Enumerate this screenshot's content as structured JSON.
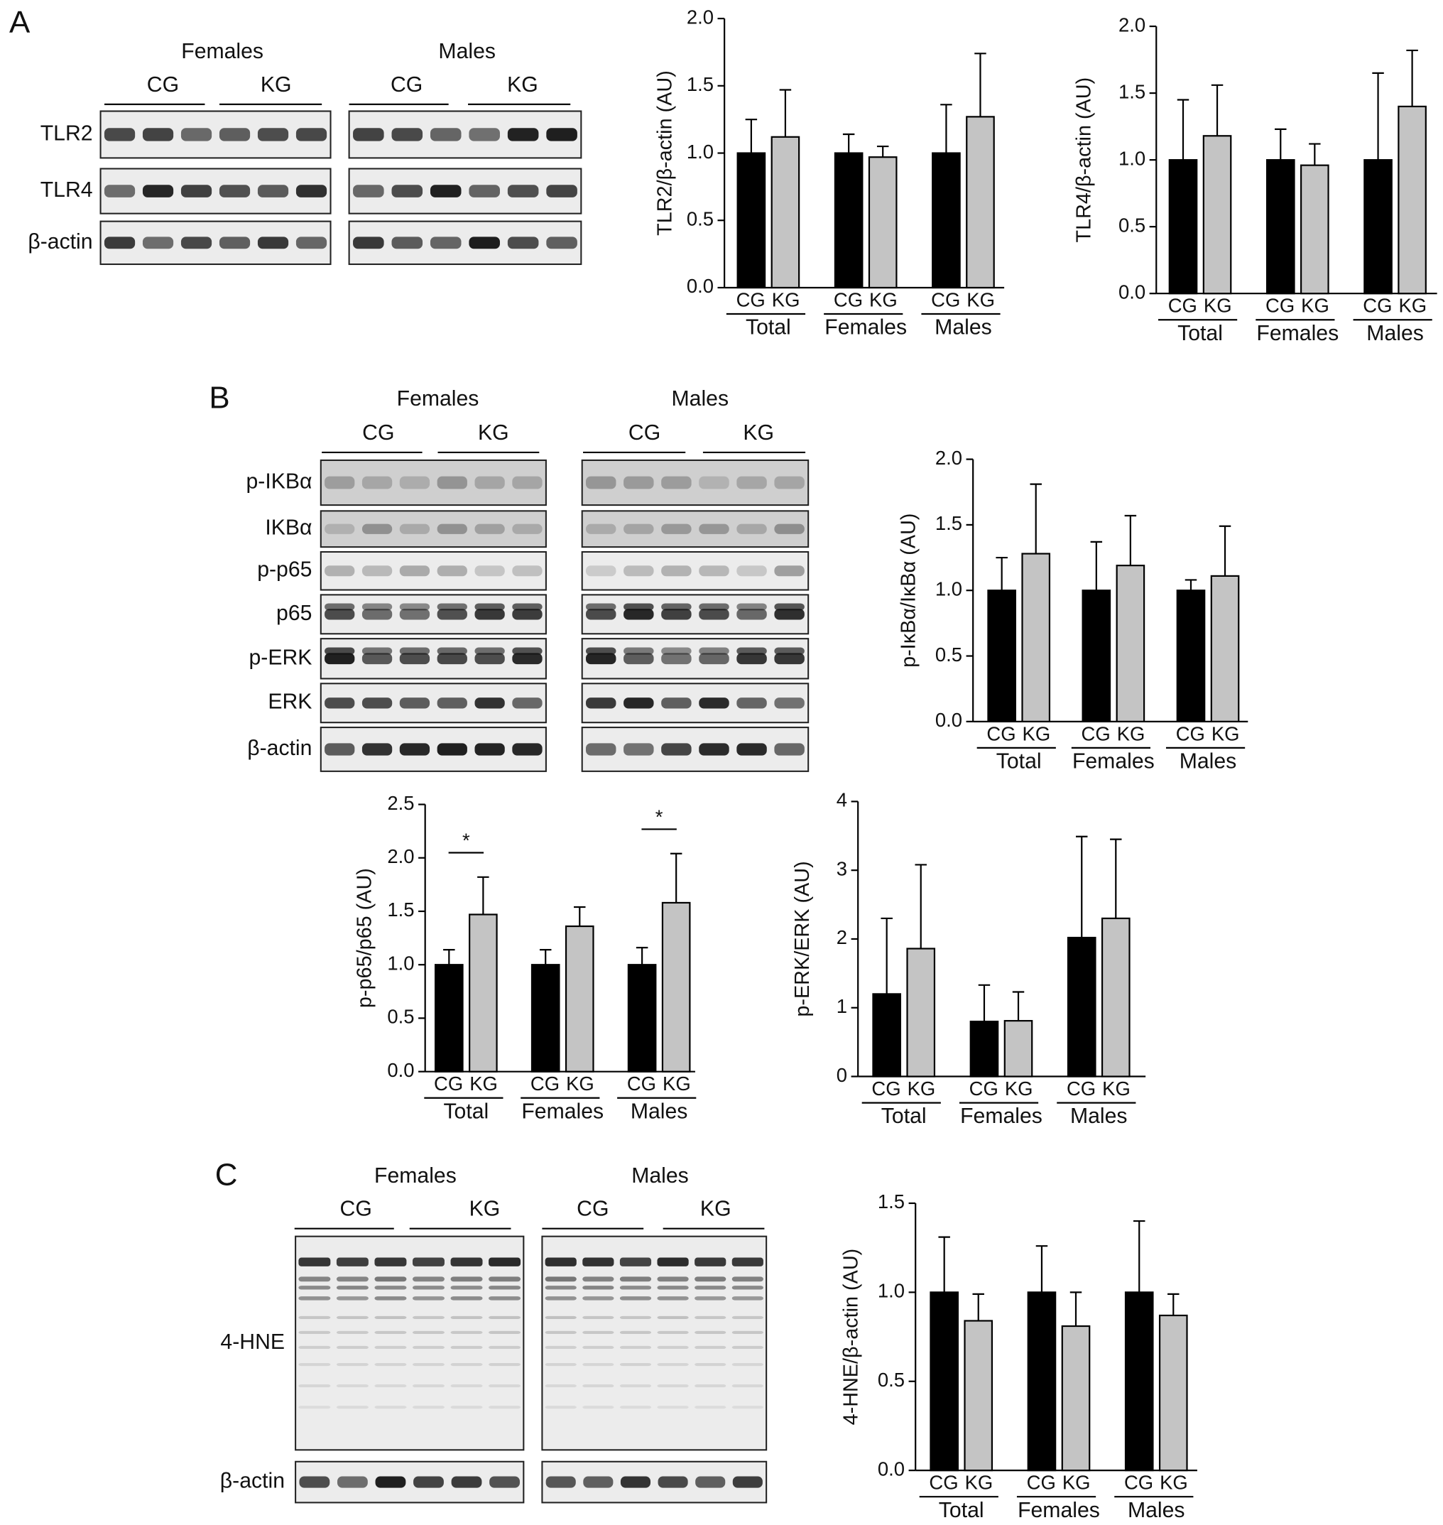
{
  "panel_labels": [
    "A",
    "B",
    "C"
  ],
  "blots": [
    {
      "groups": [
        "Females",
        "Males"
      ],
      "conditions": [
        "CG",
        "KG"
      ],
      "rows": [
        "TLR2",
        "TLR4",
        "β-actin"
      ]
    },
    {
      "groups": [
        "Females",
        "Males"
      ],
      "conditions": [
        "CG",
        "KG"
      ],
      "rows": [
        "p-IKBα",
        "IKBα",
        "p-p65",
        "p65",
        "p-ERK",
        "ERK",
        "β-actin"
      ]
    },
    {
      "groups": [
        "Females",
        "Males"
      ],
      "conditions": [
        "CG",
        "KG"
      ],
      "rows": [
        "4-HNE",
        "β-actin"
      ]
    }
  ],
  "chart_data": [
    {
      "type": "bar",
      "y_label": "TLR2/β-actin (AU)",
      "categories": [
        "Total",
        "Females",
        "Males"
      ],
      "series": [
        {
          "name": "CG",
          "color": "#000000",
          "values": [
            1,
            1,
            1
          ],
          "errors": [
            0.25,
            0.14,
            0.36
          ]
        },
        {
          "name": "KG",
          "color": "#c4c4c4",
          "values": [
            1.12,
            0.97,
            1.27
          ],
          "errors": [
            0.35,
            0.08,
            0.47
          ]
        }
      ],
      "ylim": [
        0,
        2
      ],
      "yticks": [
        {
          "value": 0,
          "label": "0.0"
        },
        {
          "value": 0.5,
          "label": "0.5"
        },
        {
          "value": 1,
          "label": "1.0"
        },
        {
          "value": 1.5,
          "label": "1.5"
        },
        {
          "value": 2,
          "label": "2.0"
        }
      ]
    },
    {
      "type": "bar",
      "y_label": "TLR4/β-actin (AU)",
      "categories": [
        "Total",
        "Females",
        "Males"
      ],
      "series": [
        {
          "name": "CG",
          "color": "#000000",
          "values": [
            1,
            1,
            1
          ],
          "errors": [
            0.45,
            0.23,
            0.65
          ]
        },
        {
          "name": "KG",
          "color": "#c4c4c4",
          "values": [
            1.18,
            0.96,
            1.4
          ],
          "errors": [
            0.38,
            0.16,
            0.42
          ]
        }
      ],
      "ylim": [
        0,
        2
      ],
      "yticks": [
        {
          "value": 0,
          "label": "0.0"
        },
        {
          "value": 0.5,
          "label": "0.5"
        },
        {
          "value": 1,
          "label": "1.0"
        },
        {
          "value": 1.5,
          "label": "1.5"
        },
        {
          "value": 2,
          "label": "2.0"
        }
      ]
    },
    {
      "type": "bar",
      "y_label": "p-IκBα/IκBα (AU)",
      "categories": [
        "Total",
        "Females",
        "Males"
      ],
      "series": [
        {
          "name": "CG",
          "color": "#000000",
          "values": [
            1,
            1,
            1
          ],
          "errors": [
            0.25,
            0.37,
            0.08
          ]
        },
        {
          "name": "KG",
          "color": "#c4c4c4",
          "values": [
            1.28,
            1.19,
            1.11
          ],
          "errors": [
            0.53,
            0.38,
            0.38
          ]
        }
      ],
      "ylim": [
        0,
        2
      ],
      "yticks": [
        {
          "value": 0,
          "label": "0.0"
        },
        {
          "value": 0.5,
          "label": "0.5"
        },
        {
          "value": 1,
          "label": "1.0"
        },
        {
          "value": 1.5,
          "label": "1.5"
        },
        {
          "value": 2,
          "label": "2.0"
        }
      ]
    },
    {
      "type": "bar",
      "y_label": "p-p65/p65 (AU)",
      "categories": [
        "Total",
        "Females",
        "Males"
      ],
      "series": [
        {
          "name": "CG",
          "color": "#000000",
          "values": [
            1,
            1,
            1
          ],
          "errors": [
            0.14,
            0.14,
            0.16
          ]
        },
        {
          "name": "KG",
          "color": "#c4c4c4",
          "values": [
            1.47,
            1.36,
            1.58
          ],
          "errors": [
            0.35,
            0.18,
            0.46
          ]
        }
      ],
      "ylim": [
        0,
        2.5
      ],
      "yticks": [
        {
          "value": 0,
          "label": "0.0"
        },
        {
          "value": 0.5,
          "label": "0.5"
        },
        {
          "value": 1,
          "label": "1.0"
        },
        {
          "value": 1.5,
          "label": "1.5"
        },
        {
          "value": 2,
          "label": "2.0"
        },
        {
          "value": 2.5,
          "label": "2.5"
        }
      ],
      "annotations": [
        {
          "text": "*",
          "category": "Total"
        },
        {
          "text": "*",
          "category": "Males"
        }
      ]
    },
    {
      "type": "bar",
      "y_label": "p-ERK/ERK (AU)",
      "categories": [
        "Total",
        "Females",
        "Males"
      ],
      "series": [
        {
          "name": "CG",
          "color": "#000000",
          "values": [
            1.2,
            0.8,
            2.02
          ],
          "errors": [
            1.1,
            0.53,
            1.47
          ]
        },
        {
          "name": "KG",
          "color": "#c4c4c4",
          "values": [
            1.86,
            0.81,
            2.3
          ],
          "errors": [
            1.22,
            0.42,
            1.15
          ]
        }
      ],
      "ylim": [
        0,
        4
      ],
      "yticks": [
        0,
        1,
        2,
        3,
        4
      ]
    },
    {
      "type": "bar",
      "y_label": "4-HNE/β-actin (AU)",
      "categories": [
        "Total",
        "Females",
        "Males"
      ],
      "series": [
        {
          "name": "CG",
          "color": "#000000",
          "values": [
            1,
            1,
            1
          ],
          "errors": [
            0.31,
            0.26,
            0.4
          ]
        },
        {
          "name": "KG",
          "color": "#c4c4c4",
          "values": [
            0.84,
            0.81,
            0.87
          ],
          "errors": [
            0.15,
            0.19,
            0.12
          ]
        }
      ],
      "ylim": [
        0,
        1.5
      ],
      "yticks": [
        {
          "value": 0,
          "label": "0.0"
        },
        {
          "value": 0.5,
          "label": "0.5"
        },
        {
          "value": 1,
          "label": "1.0"
        },
        {
          "value": 1.5,
          "label": "1.5"
        }
      ]
    }
  ]
}
